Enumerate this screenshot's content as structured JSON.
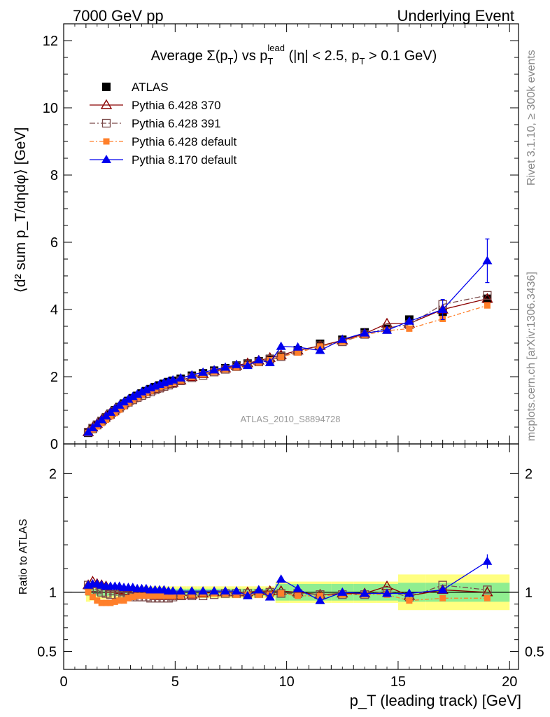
{
  "header": {
    "left": "7000 GeV pp",
    "right": "Underlying Event"
  },
  "side_labels": {
    "rivet": "Rivet 3.1.10, ≥ 300k events",
    "mcplots": "mcplots.cern.ch [arXiv:1306.3436]"
  },
  "chart_data": [
    {
      "type": "scatter",
      "title_parts": [
        "Average ",
        "Σ(p",
        "T",
        ") vs p",
        "T",
        "lead",
        " (|η| < 2.5, p",
        "T",
        " > 0.1 GeV)"
      ],
      "ylabel": "⟨d² sum p_T/dηdφ⟩ [GeV]",
      "xlabel": "p_T (leading track) [GeV]",
      "watermark": "ATLAS_2010_S8894728",
      "xlim": [
        0,
        20.4
      ],
      "ylim": [
        0,
        12.5
      ],
      "y_ticks": [
        2,
        4,
        6,
        8,
        10,
        12
      ],
      "x_ticks": [
        0,
        5,
        10,
        15,
        20
      ],
      "legend_position": "top-left",
      "legend": [
        "ATLAS",
        "Pythia 6.428 370",
        "Pythia 6.428 391",
        "Pythia 6.428 default",
        "Pythia 8.170 default"
      ],
      "x": [
        1.1,
        1.3,
        1.5,
        1.7,
        1.9,
        2.1,
        2.3,
        2.5,
        2.7,
        2.9,
        3.1,
        3.3,
        3.5,
        3.7,
        3.9,
        4.1,
        4.3,
        4.5,
        4.7,
        4.9,
        5.25,
        5.75,
        6.25,
        6.75,
        7.25,
        7.75,
        8.25,
        8.75,
        9.25,
        9.75,
        10.5,
        11.5,
        12.5,
        13.5,
        14.5,
        15.5,
        17.0,
        19.0
      ],
      "series": [
        {
          "name": "ATLAS",
          "color": "#000000",
          "values": [
            0.33,
            0.45,
            0.56,
            0.68,
            0.79,
            0.9,
            1.0,
            1.1,
            1.2,
            1.28,
            1.36,
            1.43,
            1.5,
            1.57,
            1.63,
            1.69,
            1.74,
            1.79,
            1.84,
            1.88,
            1.94,
            2.03,
            2.1,
            2.18,
            2.25,
            2.33,
            2.39,
            2.46,
            2.53,
            2.62,
            2.79,
            2.98,
            3.1,
            3.32,
            3.42,
            3.7,
            3.93,
            4.32
          ]
        },
        {
          "name": "Pythia 6.428 370",
          "color": "#8b0000",
          "values": [
            0.35,
            0.49,
            0.6,
            0.72,
            0.83,
            0.93,
            1.03,
            1.12,
            1.21,
            1.29,
            1.36,
            1.42,
            1.48,
            1.54,
            1.59,
            1.64,
            1.69,
            1.74,
            1.78,
            1.82,
            1.89,
            1.99,
            2.08,
            2.17,
            2.25,
            2.33,
            2.4,
            2.48,
            2.56,
            2.64,
            2.78,
            2.92,
            3.08,
            3.28,
            3.58,
            3.58,
            4.0,
            4.32
          ]
        },
        {
          "name": "Pythia 6.428 391",
          "color": "#7a4a4a",
          "values": [
            0.35,
            0.47,
            0.57,
            0.68,
            0.78,
            0.88,
            0.98,
            1.07,
            1.16,
            1.24,
            1.31,
            1.38,
            1.44,
            1.5,
            1.55,
            1.61,
            1.66,
            1.71,
            1.75,
            1.8,
            1.88,
            1.97,
            2.04,
            2.14,
            2.22,
            2.3,
            2.36,
            2.44,
            2.52,
            2.6,
            2.76,
            2.92,
            3.04,
            3.26,
            3.45,
            3.55,
            4.15,
            4.42
          ]
        },
        {
          "name": "Pythia 6.428 default",
          "color": "#ff7f2a",
          "values": [
            0.33,
            0.43,
            0.52,
            0.62,
            0.72,
            0.82,
            0.92,
            1.02,
            1.12,
            1.22,
            1.31,
            1.38,
            1.45,
            1.52,
            1.58,
            1.64,
            1.69,
            1.74,
            1.79,
            1.83,
            1.89,
            1.99,
            2.07,
            2.15,
            2.22,
            2.28,
            2.35,
            2.42,
            2.49,
            2.59,
            2.72,
            2.9,
            3.04,
            3.25,
            3.37,
            3.43,
            3.72,
            4.12
          ]
        },
        {
          "name": "Pythia 8.170 default",
          "color": "#0000ee",
          "values": [
            0.35,
            0.48,
            0.6,
            0.72,
            0.83,
            0.94,
            1.05,
            1.15,
            1.25,
            1.33,
            1.41,
            1.48,
            1.55,
            1.61,
            1.67,
            1.72,
            1.77,
            1.82,
            1.86,
            1.9,
            1.96,
            2.05,
            2.13,
            2.2,
            2.28,
            2.36,
            2.33,
            2.5,
            2.42,
            2.9,
            2.88,
            2.78,
            3.11,
            3.3,
            3.38,
            3.65,
            4.0,
            5.45
          ]
        }
      ]
    },
    {
      "type": "scatter",
      "ylabel": "Ratio to ATLAS",
      "ylim": [
        0.35,
        2.25
      ],
      "y_ticks": [
        0.5,
        1,
        2
      ],
      "reference_line": 1,
      "band_colors": {
        "stat": "#90ee90",
        "total": "#ffff80"
      },
      "series": [
        {
          "name": "Pythia 6.428 370",
          "values": [
            1.06,
            1.09,
            1.07,
            1.06,
            1.05,
            1.03,
            1.03,
            1.02,
            1.01,
            1.01,
            1.0,
            0.99,
            0.99,
            0.98,
            0.98,
            0.97,
            0.97,
            0.97,
            0.97,
            0.97,
            0.97,
            0.98,
            0.99,
            1.0,
            1.0,
            1.0,
            1.0,
            1.01,
            1.01,
            1.01,
            1.0,
            0.98,
            0.99,
            0.99,
            1.05,
            0.97,
            1.02,
            1.0
          ]
        },
        {
          "name": "Pythia 6.428 391",
          "values": [
            1.06,
            1.04,
            1.02,
            1.0,
            0.99,
            0.98,
            0.98,
            0.97,
            0.97,
            0.97,
            0.96,
            0.96,
            0.96,
            0.96,
            0.95,
            0.95,
            0.95,
            0.95,
            0.95,
            0.96,
            0.97,
            0.97,
            0.97,
            0.98,
            0.99,
            0.99,
            0.99,
            0.99,
            1.0,
            0.99,
            0.99,
            0.98,
            0.98,
            0.98,
            1.01,
            0.96,
            1.06,
            1.02
          ]
        },
        {
          "name": "Pythia 6.428 default",
          "values": [
            1.0,
            0.96,
            0.93,
            0.91,
            0.91,
            0.91,
            0.92,
            0.93,
            0.93,
            0.95,
            0.96,
            0.97,
            0.97,
            0.97,
            0.97,
            0.97,
            0.97,
            0.97,
            0.97,
            0.97,
            0.97,
            0.98,
            0.99,
            0.99,
            0.99,
            0.98,
            0.98,
            0.98,
            0.98,
            0.99,
            0.97,
            0.97,
            0.98,
            0.98,
            0.98,
            0.93,
            0.95,
            0.95
          ]
        },
        {
          "name": "Pythia 8.170 default",
          "values": [
            1.06,
            1.07,
            1.07,
            1.06,
            1.05,
            1.05,
            1.05,
            1.05,
            1.04,
            1.04,
            1.04,
            1.03,
            1.03,
            1.03,
            1.02,
            1.02,
            1.02,
            1.02,
            1.01,
            1.01,
            1.01,
            1.01,
            1.01,
            1.01,
            1.01,
            1.01,
            0.97,
            1.02,
            0.96,
            1.11,
            1.03,
            0.93,
            1.0,
            0.99,
            0.99,
            0.99,
            1.02,
            1.26
          ]
        }
      ],
      "stat_band": [
        0.03,
        0.03,
        0.03,
        0.03,
        0.03,
        0.03,
        0.03,
        0.03,
        0.03,
        0.03,
        0.03,
        0.03,
        0.03,
        0.03,
        0.03,
        0.03,
        0.03,
        0.03,
        0.03,
        0.03,
        0.03,
        0.03,
        0.03,
        0.03,
        0.03,
        0.03,
        0.03,
        0.03,
        0.03,
        0.07,
        0.07,
        0.07,
        0.07,
        0.07,
        0.07,
        0.08,
        0.08,
        0.08
      ],
      "total_band": [
        0.08,
        0.07,
        0.06,
        0.06,
        0.06,
        0.05,
        0.05,
        0.05,
        0.05,
        0.05,
        0.05,
        0.05,
        0.05,
        0.05,
        0.05,
        0.05,
        0.05,
        0.05,
        0.05,
        0.05,
        0.05,
        0.05,
        0.05,
        0.05,
        0.05,
        0.05,
        0.05,
        0.05,
        0.05,
        0.09,
        0.09,
        0.09,
        0.09,
        0.09,
        0.09,
        0.15,
        0.15,
        0.15
      ]
    }
  ]
}
